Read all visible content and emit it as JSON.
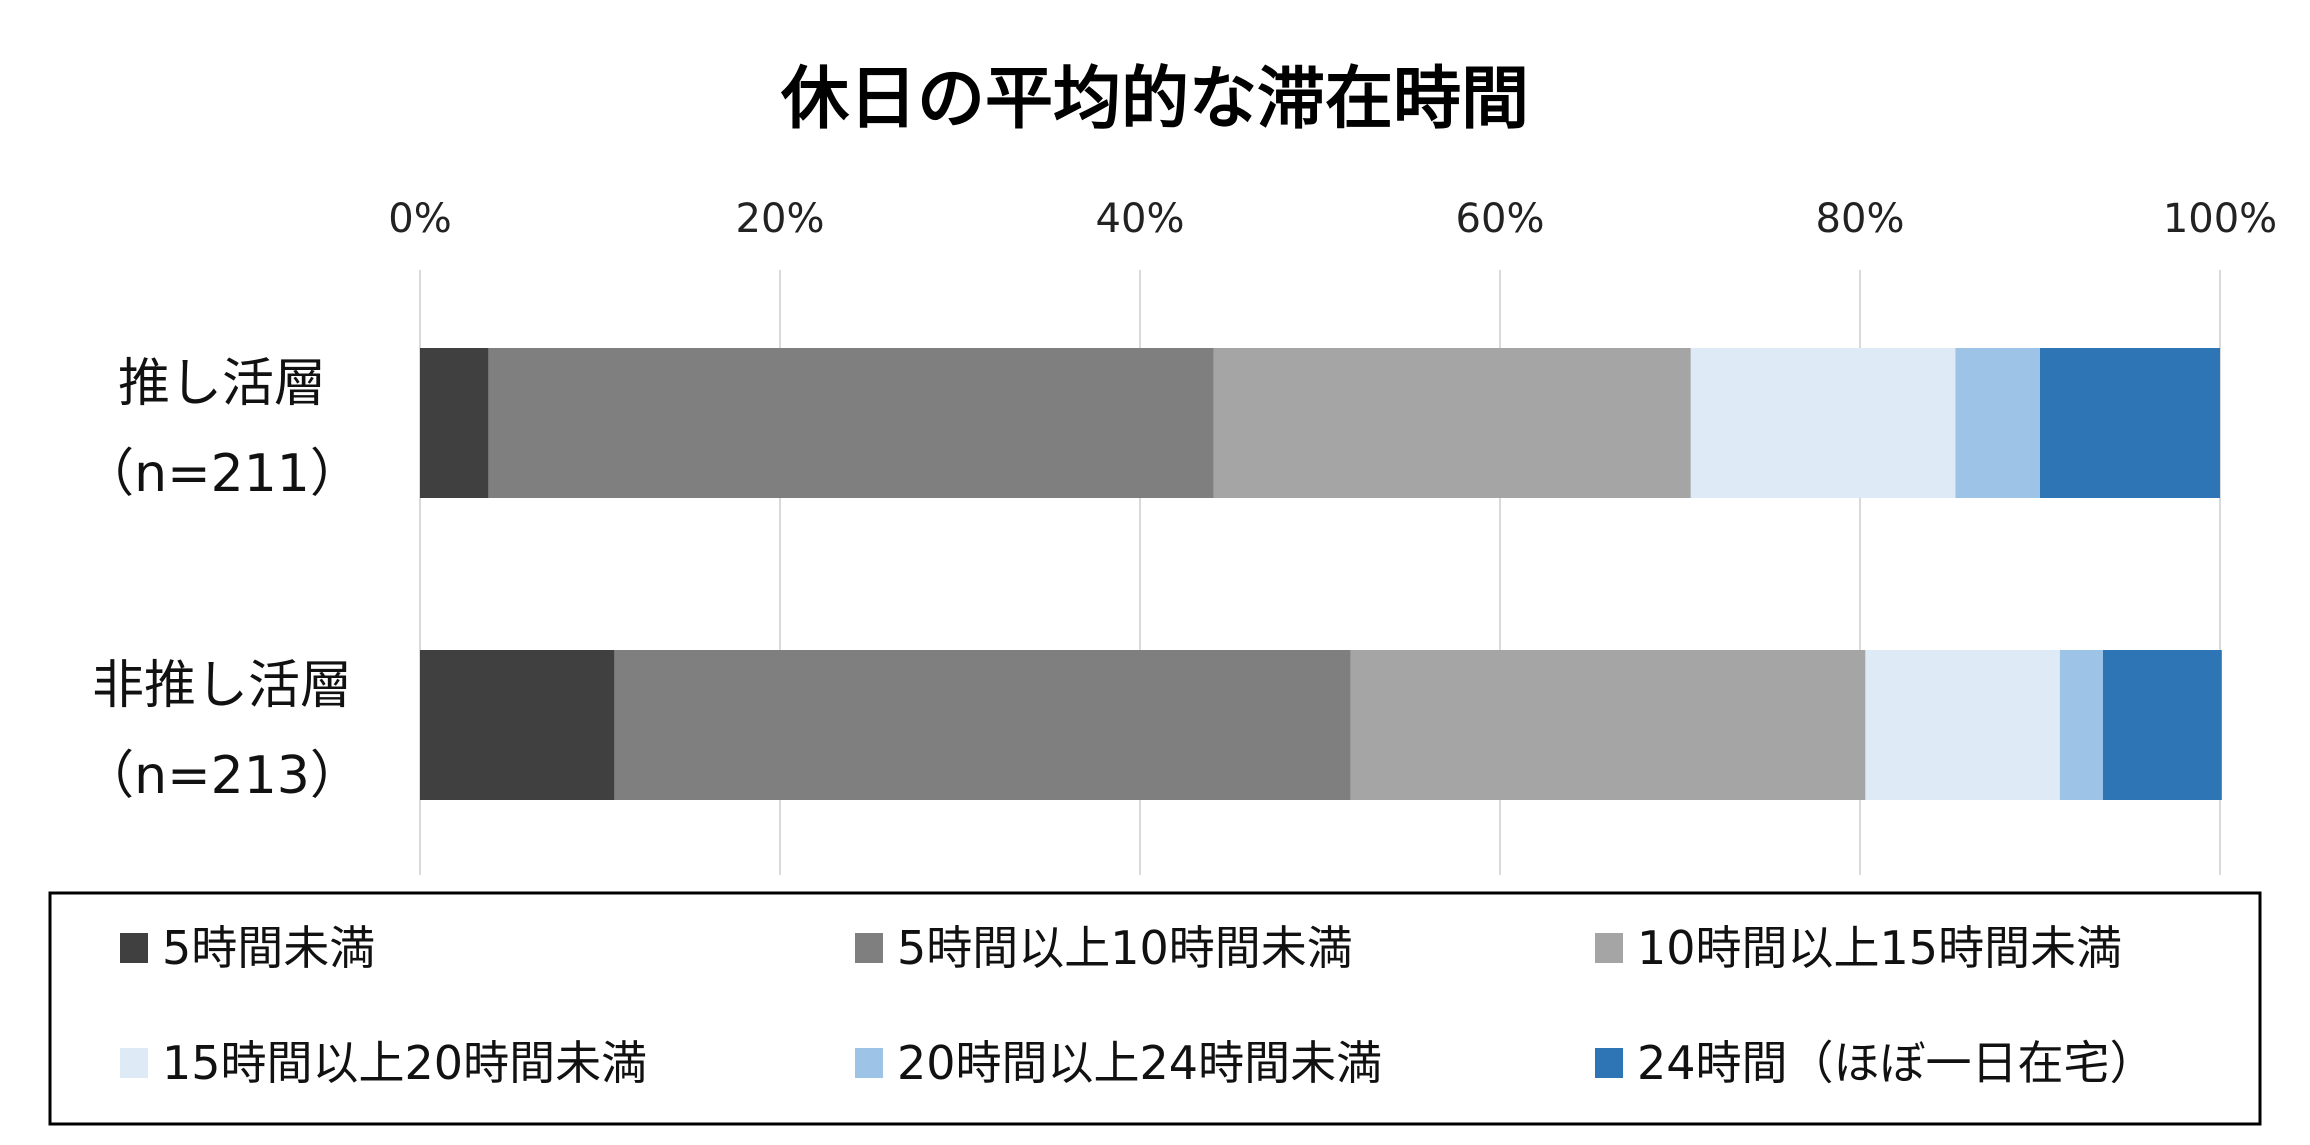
{
  "chart_data": {
    "type": "bar",
    "orientation": "horizontal",
    "stacked": "percent",
    "title": "休日の平均的な滞在時間",
    "xlim": [
      0,
      100
    ],
    "x_ticks": [
      "0%",
      "20%",
      "40%",
      "60%",
      "80%",
      "100%"
    ],
    "grid": true,
    "legend_position": "bottom",
    "categories": [
      [
        "推し活層",
        "（n=211）"
      ],
      [
        "非推し活層",
        "（n=213）"
      ]
    ],
    "series": [
      {
        "name": "5時間未満",
        "color": "#404040",
        "values": [
          3.8,
          10.8
        ]
      },
      {
        "name": "5時間以上10時間未満",
        "color": "#7f7f7f",
        "values": [
          40.3,
          40.9
        ]
      },
      {
        "name": "10時間以上15時間未満",
        "color": "#a5a5a5",
        "values": [
          26.5,
          28.6
        ]
      },
      {
        "name": "15時間以上20時間未満",
        "color": "#deebf7",
        "values": [
          14.7,
          10.8
        ]
      },
      {
        "name": "20時間以上24時間未満",
        "color": "#9dc3e6",
        "values": [
          4.7,
          2.4
        ]
      },
      {
        "name": "24時間（ほぼ一日在宅）",
        "color": "#2e75b6",
        "values": [
          10.0,
          6.6
        ]
      }
    ]
  }
}
